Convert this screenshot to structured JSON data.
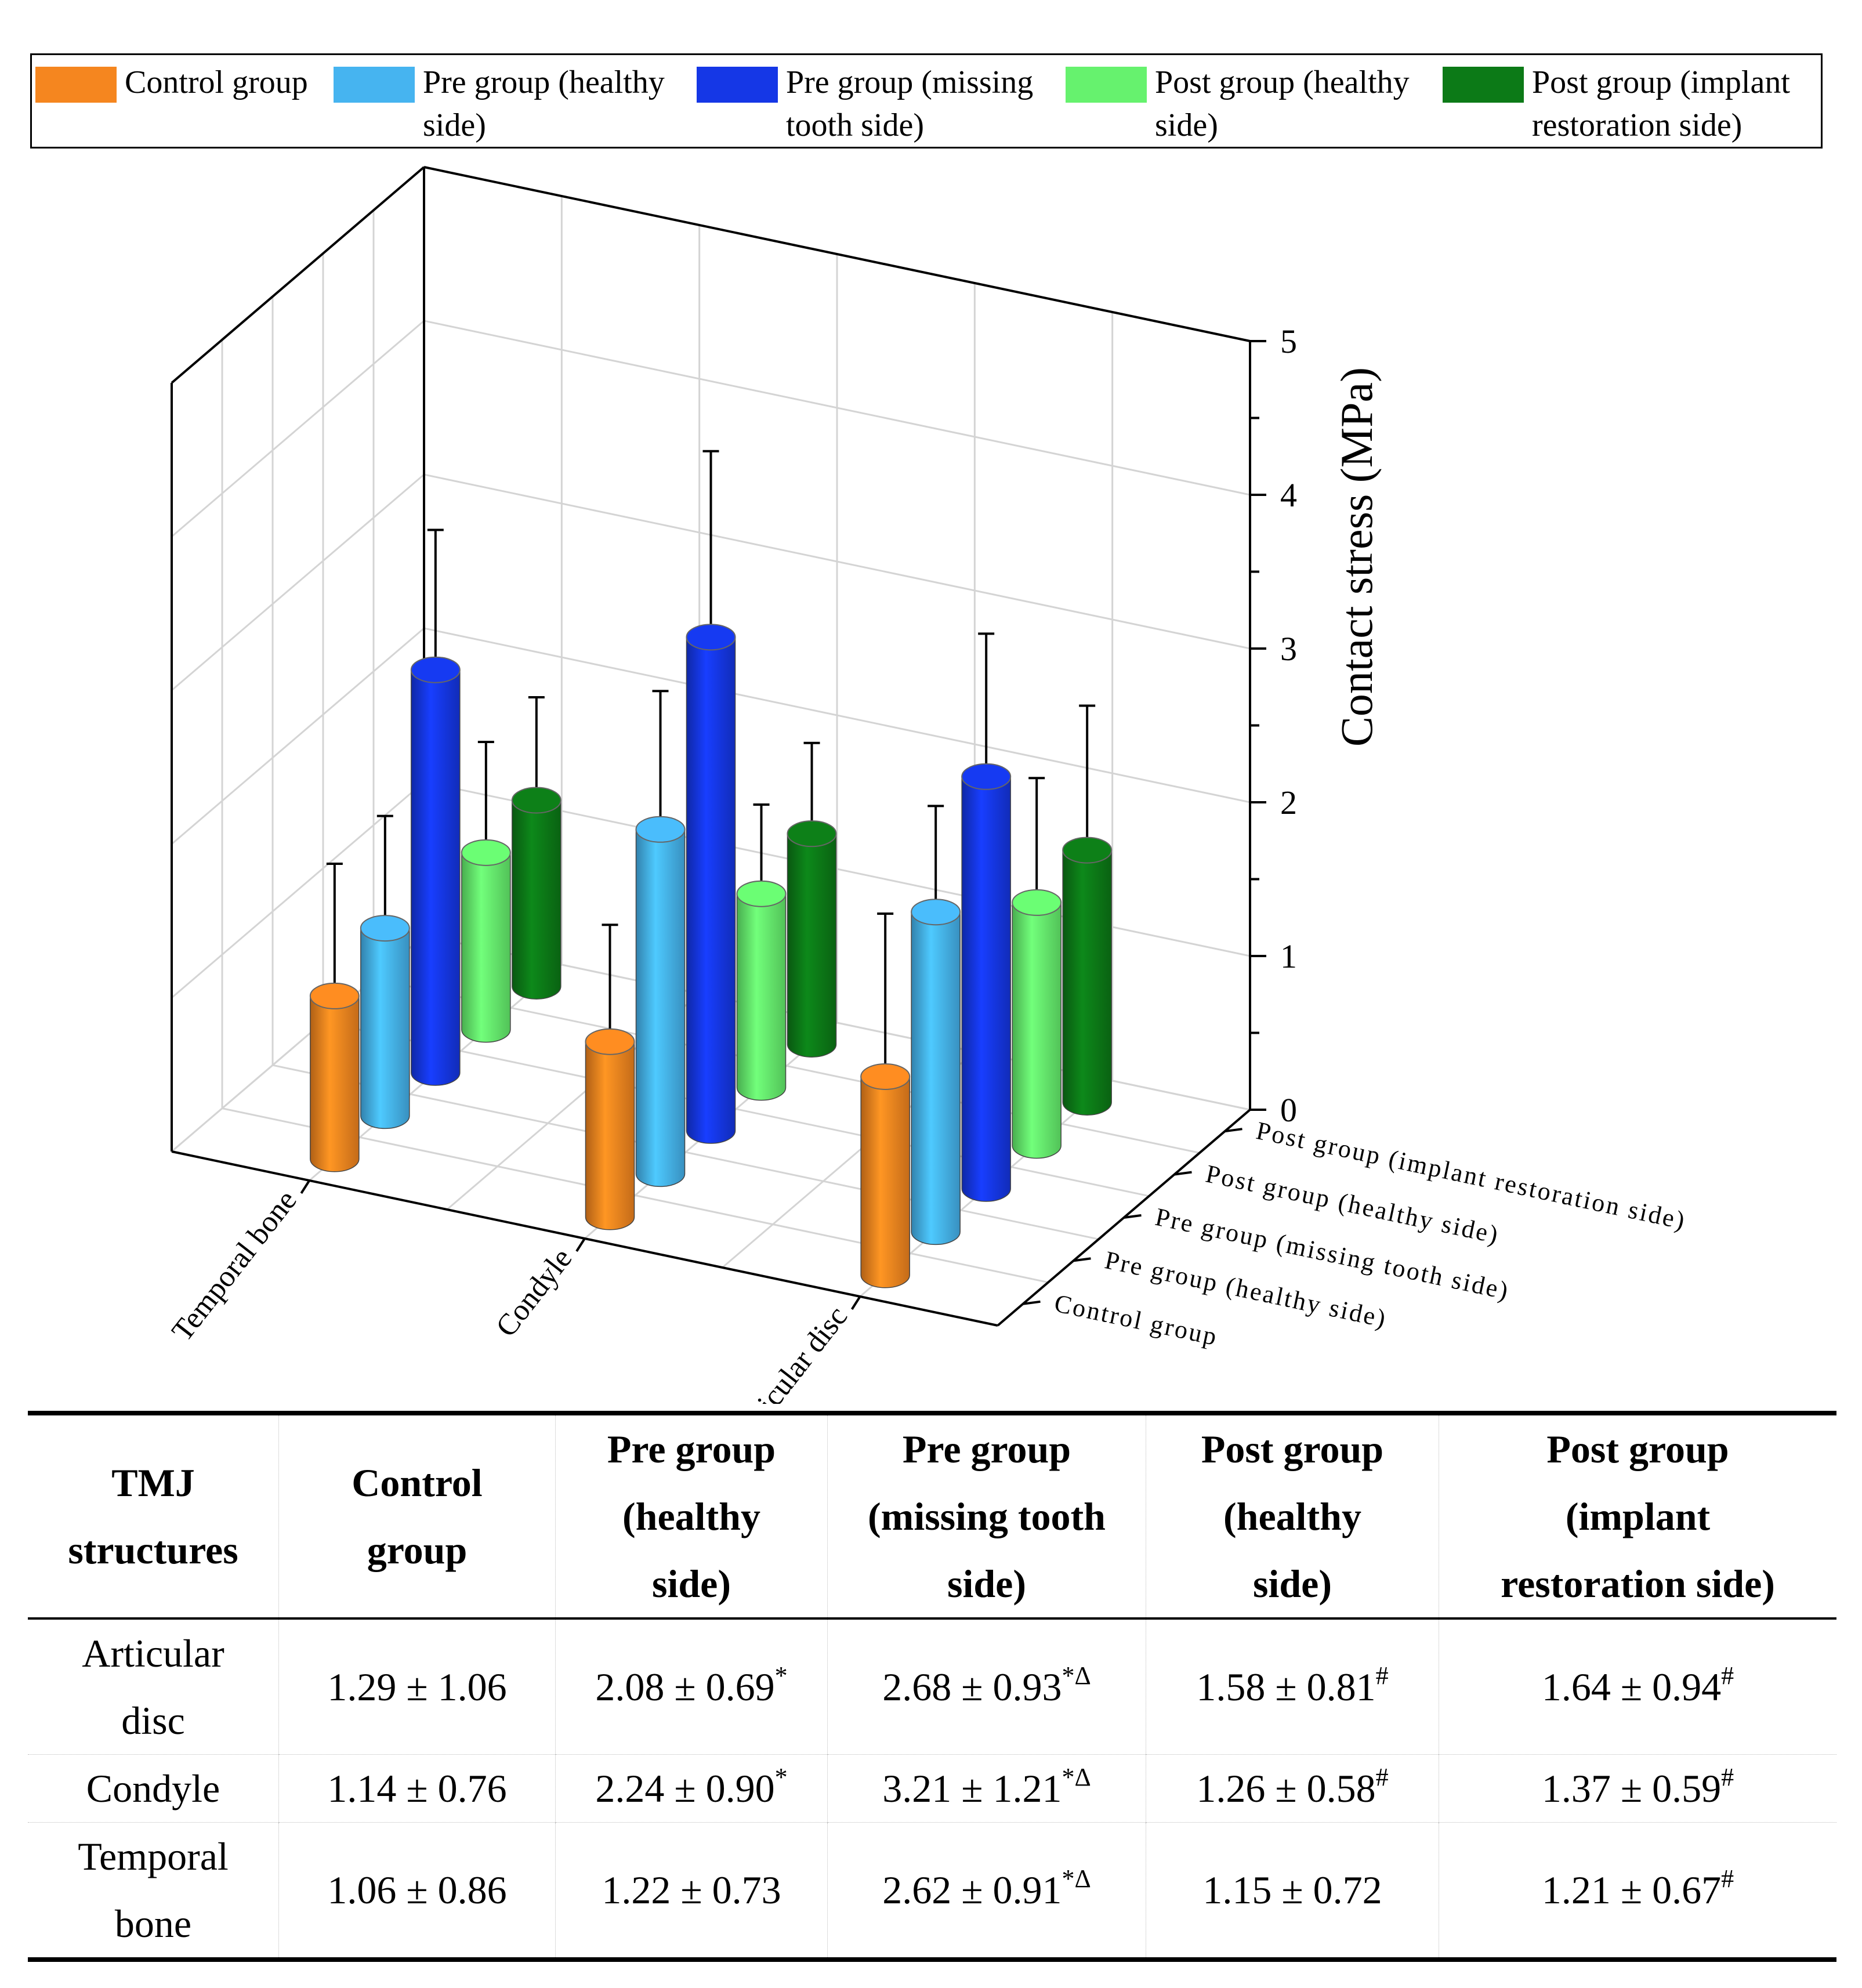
{
  "legend": [
    {
      "label": "Control group",
      "color": "#F5861F"
    },
    {
      "label": "Pre group (healthy side)",
      "color": "#46B4F0"
    },
    {
      "label": "Pre group (missing tooth side)",
      "color": "#1537E6"
    },
    {
      "label": "Post group (healthy side)",
      "color": "#66F26E"
    },
    {
      "label": "Post group (implant restoration side)",
      "color": "#0C7A17"
    }
  ],
  "chart_data": {
    "type": "bar3d",
    "zlabel": "Contact stress (MPa)",
    "zlim": [
      0,
      5
    ],
    "zticks": [
      "0",
      "1",
      "2",
      "3",
      "4",
      "5"
    ],
    "structures": [
      "Temporal bone",
      "Condyle",
      "Articular disc"
    ],
    "groups": [
      "Control group",
      "Pre group (healthy side)",
      "Pre group (missing tooth side)",
      "Post group (healthy side)",
      "Post group (implant restoration side)"
    ],
    "series": [
      {
        "name": "Control group",
        "values": [
          1.06,
          1.14,
          1.29
        ],
        "errors": [
          0.86,
          0.76,
          1.06
        ]
      },
      {
        "name": "Pre group (healthy side)",
        "values": [
          1.22,
          2.24,
          2.08
        ],
        "errors": [
          0.73,
          0.9,
          0.69
        ]
      },
      {
        "name": "Pre group (missing tooth side)",
        "values": [
          2.62,
          3.21,
          2.68
        ],
        "errors": [
          0.91,
          1.21,
          0.93
        ]
      },
      {
        "name": "Post group (healthy side)",
        "values": [
          1.15,
          1.26,
          1.58
        ],
        "errors": [
          0.72,
          0.58,
          0.81
        ]
      },
      {
        "name": "Post group (implant restoration side)",
        "values": [
          1.21,
          1.37,
          1.64
        ],
        "errors": [
          0.67,
          0.59,
          0.94
        ]
      }
    ]
  },
  "table": {
    "headers": [
      [
        "TMJ",
        "structures"
      ],
      [
        "Control",
        "group"
      ],
      [
        "Pre group",
        "(healthy",
        "side)"
      ],
      [
        "Pre group",
        "(missing tooth",
        "side)"
      ],
      [
        "Post group",
        "(healthy",
        "side)"
      ],
      [
        "Post group",
        "(implant",
        "restoration side)"
      ]
    ],
    "rows": [
      {
        "name": [
          "Articular",
          "disc"
        ],
        "cells": [
          {
            "v": "1.29 ± 1.06",
            "s": ""
          },
          {
            "v": "2.08 ± 0.69",
            "s": "*"
          },
          {
            "v": "2.68 ± 0.93",
            "s": "*Δ"
          },
          {
            "v": "1.58 ± 0.81",
            "s": "#"
          },
          {
            "v": "1.64 ± 0.94",
            "s": "#"
          }
        ]
      },
      {
        "name": [
          "Condyle"
        ],
        "cells": [
          {
            "v": "1.14 ± 0.76",
            "s": ""
          },
          {
            "v": "2.24 ± 0.90",
            "s": "*"
          },
          {
            "v": "3.21 ± 1.21",
            "s": "*Δ"
          },
          {
            "v": "1.26 ± 0.58",
            "s": "#"
          },
          {
            "v": "1.37 ± 0.59",
            "s": "#"
          }
        ]
      },
      {
        "name": [
          "Temporal",
          "bone"
        ],
        "cells": [
          {
            "v": "1.06 ± 0.86",
            "s": ""
          },
          {
            "v": "1.22 ± 0.73",
            "s": ""
          },
          {
            "v": "2.62 ± 0.91",
            "s": "*Δ"
          },
          {
            "v": "1.15 ± 0.72",
            "s": ""
          },
          {
            "v": "1.21 ± 0.67",
            "s": "#"
          }
        ]
      }
    ]
  }
}
